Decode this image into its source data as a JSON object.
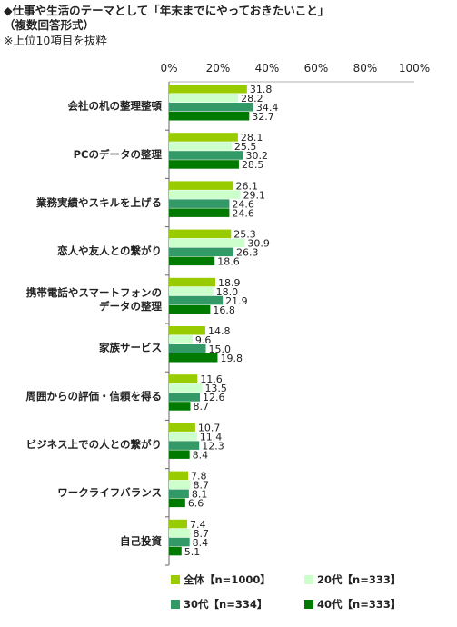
{
  "header": {
    "line1": "◆仕事や生活のテーマとして「年末までにやっておきたいこと」",
    "line2": "（複数回答形式）",
    "line3": "※上位10項目を抜粋"
  },
  "colors": {
    "all": "#99cc00",
    "age20": "#ccffcc",
    "age30": "#339966",
    "age40": "#007a00"
  },
  "chart_data": {
    "type": "bar",
    "orientation": "horizontal",
    "xlim": [
      0,
      100
    ],
    "ticks": [
      "0%",
      "20%",
      "40%",
      "60%",
      "80%",
      "100%"
    ],
    "tick_values": [
      0,
      20,
      40,
      60,
      80,
      100
    ],
    "categories": [
      [
        "会社の机の整理整頓"
      ],
      [
        "PCのデータの整理"
      ],
      [
        "業務実績やスキルを上げる"
      ],
      [
        "恋人や友人との繋がり"
      ],
      [
        "携帯電話やスマートフォンの",
        "データの整理"
      ],
      [
        "家族サービス"
      ],
      [
        "周囲からの評価・信頼を得る"
      ],
      [
        "ビジネス上での人との繋がり"
      ],
      [
        "ワークライフバランス"
      ],
      [
        "自己投資"
      ]
    ],
    "series": [
      {
        "name": "全体【n=1000】",
        "values": [
          31.8,
          28.1,
          26.1,
          25.3,
          18.9,
          14.8,
          11.6,
          10.7,
          7.8,
          7.4
        ]
      },
      {
        "name": "20代【n=333】",
        "values": [
          28.2,
          25.5,
          29.1,
          30.9,
          18.0,
          9.6,
          13.5,
          11.4,
          8.7,
          8.7
        ]
      },
      {
        "name": "30代【n=334】",
        "values": [
          34.4,
          30.2,
          24.6,
          26.3,
          21.9,
          15.0,
          12.6,
          12.3,
          8.1,
          8.4
        ]
      },
      {
        "name": "40代【n=333】",
        "values": [
          32.7,
          28.5,
          24.6,
          18.6,
          16.8,
          19.8,
          8.7,
          8.4,
          6.6,
          5.1
        ]
      }
    ],
    "legend_position": "bottom"
  }
}
